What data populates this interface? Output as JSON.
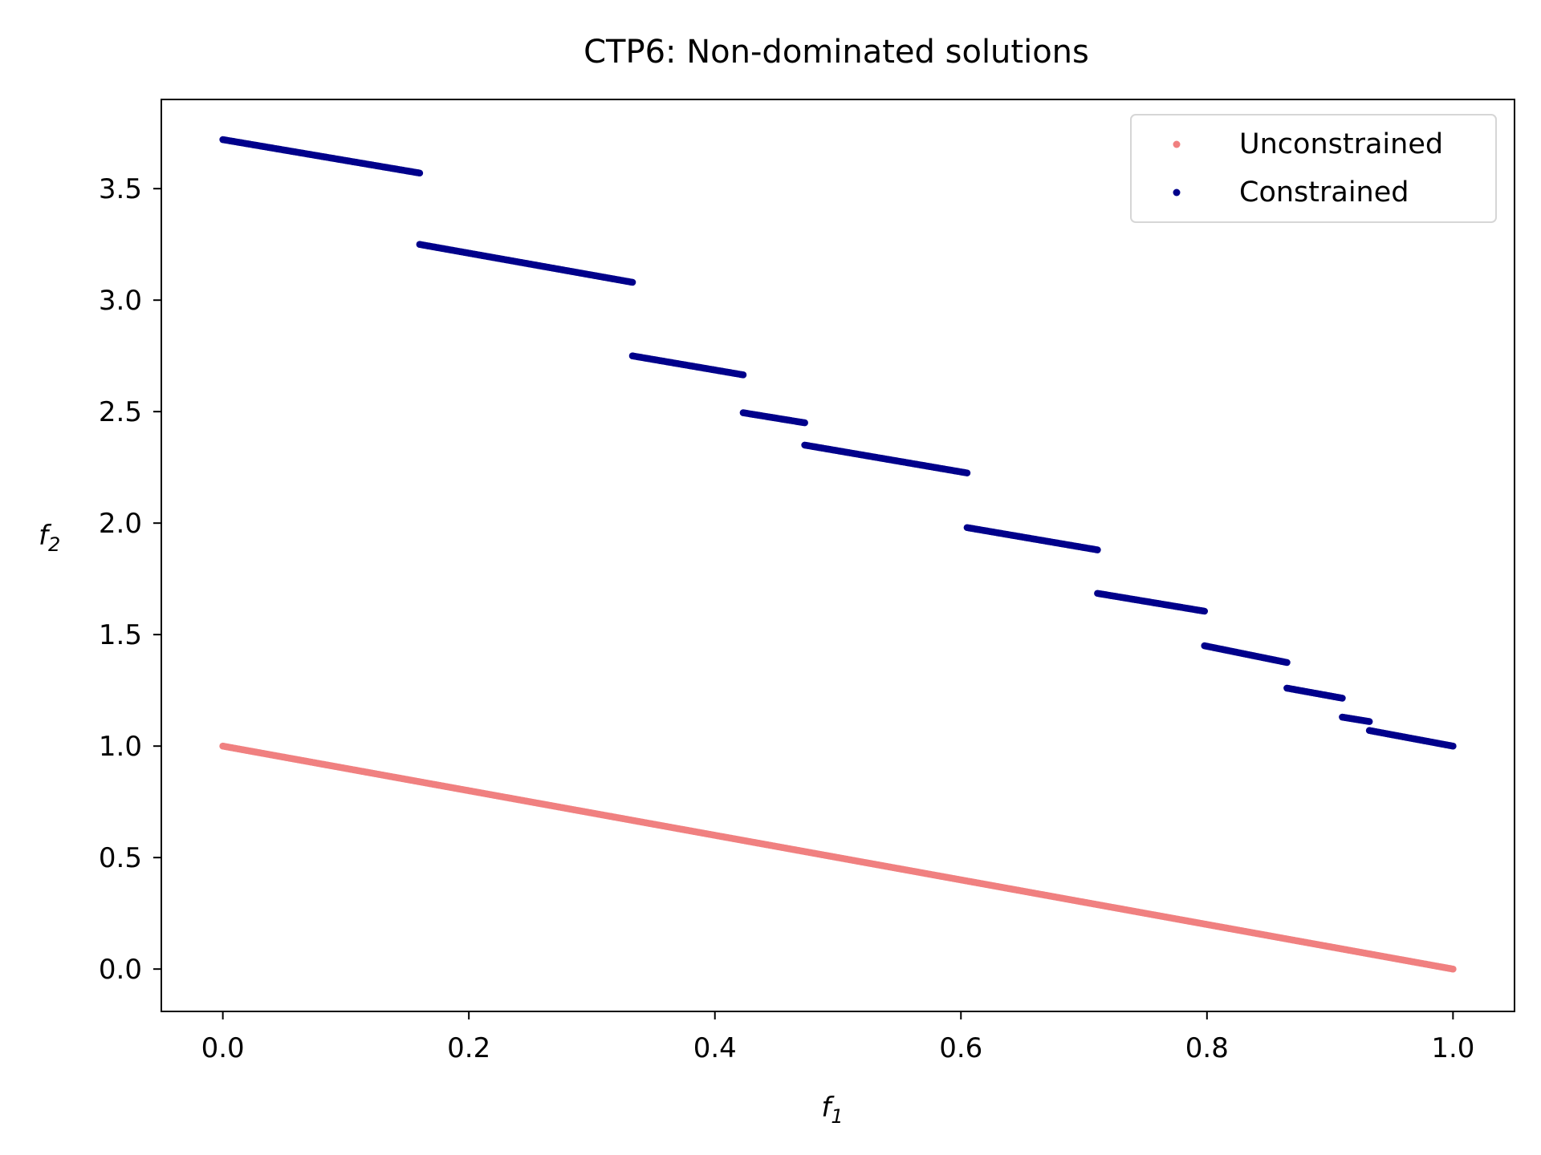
{
  "chart_data": {
    "type": "scatter",
    "title": "CTP6: Non-dominated solutions",
    "xlabel": "f",
    "xlabel_sub": "1",
    "ylabel": "f",
    "ylabel_sub": "2",
    "xlim": [
      -0.05,
      1.05
    ],
    "ylim": [
      -0.19,
      3.9
    ],
    "xticks": [
      0.0,
      0.2,
      0.4,
      0.6,
      0.8,
      1.0
    ],
    "xtick_labels": [
      "0.0",
      "0.2",
      "0.4",
      "0.6",
      "0.8",
      "1.0"
    ],
    "yticks": [
      0.0,
      0.5,
      1.0,
      1.5,
      2.0,
      2.5,
      3.0,
      3.5
    ],
    "ytick_labels": [
      "0.0",
      "0.5",
      "1.0",
      "1.5",
      "2.0",
      "2.5",
      "3.0",
      "3.5"
    ],
    "grid": false,
    "legend_position": "top-right",
    "series": [
      {
        "name": "Unconstrained",
        "color": "#F08080",
        "segments": [
          {
            "x": [
              0.0,
              1.0
            ],
            "y": [
              1.0,
              0.0
            ]
          }
        ]
      },
      {
        "name": "Constrained",
        "color": "#00008B",
        "segments": [
          {
            "x": [
              0.0,
              0.16
            ],
            "y": [
              3.72,
              3.57
            ]
          },
          {
            "x": [
              0.16,
              0.333
            ],
            "y": [
              3.25,
              3.08
            ]
          },
          {
            "x": [
              0.333,
              0.423
            ],
            "y": [
              2.75,
              2.665
            ]
          },
          {
            "x": [
              0.423,
              0.473
            ],
            "y": [
              2.495,
              2.45
            ]
          },
          {
            "x": [
              0.473,
              0.605
            ],
            "y": [
              2.35,
              2.225
            ]
          },
          {
            "x": [
              0.605,
              0.711
            ],
            "y": [
              1.98,
              1.88
            ]
          },
          {
            "x": [
              0.711,
              0.798
            ],
            "y": [
              1.685,
              1.605
            ]
          },
          {
            "x": [
              0.798,
              0.865
            ],
            "y": [
              1.45,
              1.375
            ]
          },
          {
            "x": [
              0.865,
              0.91
            ],
            "y": [
              1.26,
              1.215
            ]
          },
          {
            "x": [
              0.91,
              0.932
            ],
            "y": [
              1.13,
              1.11
            ]
          },
          {
            "x": [
              0.932,
              1.0
            ],
            "y": [
              1.07,
              1.0
            ]
          }
        ]
      }
    ]
  }
}
